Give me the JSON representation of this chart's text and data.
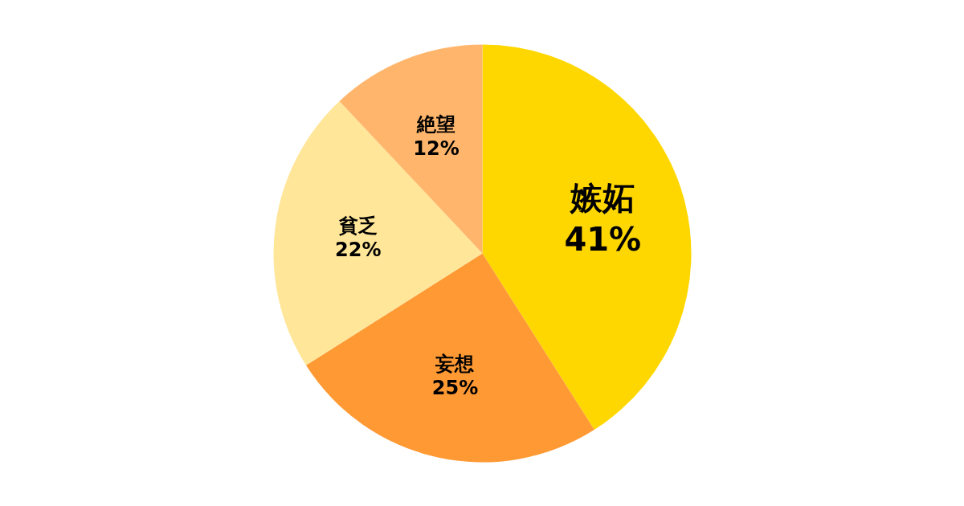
{
  "chart_data": {
    "type": "pie",
    "categories": [
      "嫉妬",
      "妄想",
      "貧乏",
      "絶望"
    ],
    "values": [
      41,
      25,
      22,
      12
    ],
    "colors": [
      "#ffd700",
      "#ff9933",
      "#ffe699",
      "#ffb66c"
    ],
    "value_labels": [
      "41%",
      "25%",
      "22%",
      "12%"
    ]
  }
}
